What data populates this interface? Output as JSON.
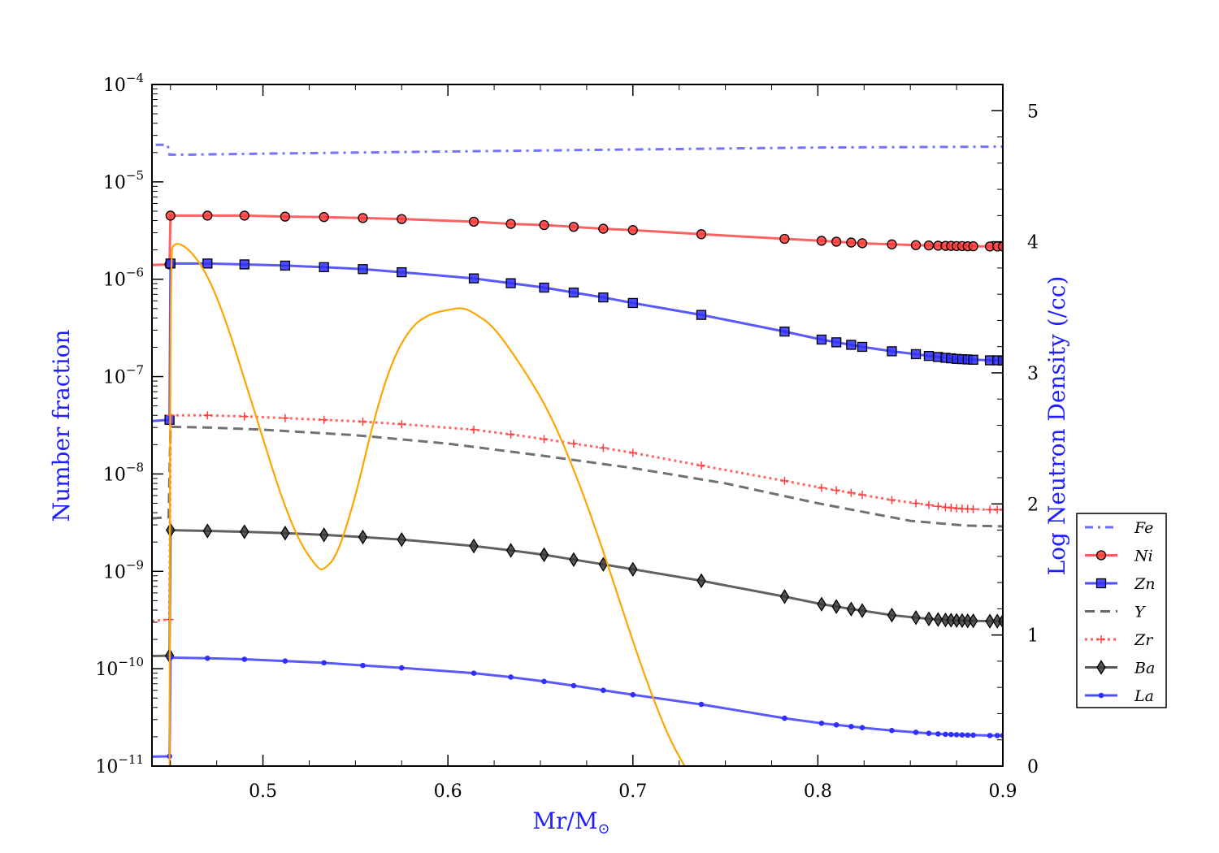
{
  "chart_data": {
    "type": "line",
    "xlabel": "Mr/M",
    "xlabel_sub": "⊙",
    "ylabel": "Number fraction",
    "ylabel_right": "Log Neutron Density (/cc)",
    "x_range": [
      0.44,
      0.9
    ],
    "x_ticks": [
      0.5,
      0.6,
      0.7,
      0.8,
      0.9
    ],
    "x_tick_labels": [
      "0.5",
      "0.6",
      "0.7",
      "0.8",
      "0.9"
    ],
    "y_scale": "log",
    "y_range": [
      1e-11,
      0.0001
    ],
    "y_tick_exps": [
      -4,
      -5,
      -6,
      -7,
      -8,
      -9,
      -10,
      -11
    ],
    "y_tick_labels": [
      "10",
      "10",
      "10",
      "10",
      "10",
      "10",
      "10",
      "10"
    ],
    "y_tick_exp_labels": [
      "−4",
      "−5",
      "−6",
      "−7",
      "−8",
      "−9",
      "−10",
      "−11"
    ],
    "y2_range": [
      0,
      5.2
    ],
    "y2_ticks": [
      0,
      1,
      2,
      3,
      4,
      5
    ],
    "y2_tick_labels": [
      "0",
      "1",
      "2",
      "3",
      "4",
      "5"
    ],
    "grid": false,
    "legend_position": "right-outside",
    "series": [
      {
        "name": "Fe",
        "color": "#5050ff",
        "dash": "10,6,3,6",
        "marker": "none",
        "x": [
          0.442,
          0.4485,
          0.4495,
          0.46,
          0.5,
          0.6,
          0.7,
          0.8,
          0.9
        ],
        "y": [
          2.4e-05,
          2.4e-05,
          1.9e-05,
          1.9e-05,
          1.95e-05,
          2.05e-05,
          2.15e-05,
          2.25e-05,
          2.3e-05
        ]
      },
      {
        "name": "Ni",
        "color": "#ff3b3b",
        "dash": "",
        "marker": "circle",
        "x": [
          0.44,
          0.4495,
          0.45,
          0.47,
          0.49,
          0.512,
          0.533,
          0.554,
          0.575,
          0.614,
          0.634,
          0.652,
          0.668,
          0.684,
          0.7,
          0.737,
          0.782,
          0.802,
          0.81,
          0.818,
          0.824,
          0.84,
          0.853,
          0.86,
          0.865,
          0.869,
          0.872,
          0.875,
          0.878,
          0.881,
          0.884,
          0.893,
          0.897,
          0.9
        ],
        "y": [
          1.4e-06,
          1.42e-06,
          4.5e-06,
          4.5e-06,
          4.5e-06,
          4.4e-06,
          4.35e-06,
          4.25e-06,
          4.15e-06,
          3.9e-06,
          3.7e-06,
          3.6e-06,
          3.45e-06,
          3.3e-06,
          3.2e-06,
          2.9e-06,
          2.6e-06,
          2.48e-06,
          2.43e-06,
          2.38e-06,
          2.34e-06,
          2.28e-06,
          2.24e-06,
          2.22e-06,
          2.21e-06,
          2.2e-06,
          2.2e-06,
          2.19e-06,
          2.19e-06,
          2.18e-06,
          2.18e-06,
          2.17e-06,
          2.17e-06,
          2.17e-06
        ]
      },
      {
        "name": "Zn",
        "color": "#2f2fff",
        "dash": "",
        "marker": "square",
        "x": [
          0.44,
          0.4495,
          0.45,
          0.47,
          0.49,
          0.512,
          0.533,
          0.554,
          0.575,
          0.614,
          0.634,
          0.652,
          0.668,
          0.684,
          0.7,
          0.737,
          0.782,
          0.802,
          0.81,
          0.818,
          0.824,
          0.84,
          0.853,
          0.86,
          0.865,
          0.869,
          0.872,
          0.875,
          0.878,
          0.881,
          0.884,
          0.893,
          0.897,
          0.9
        ],
        "y": [
          3.5e-08,
          3.6e-08,
          1.45e-06,
          1.45e-06,
          1.42e-06,
          1.38e-06,
          1.33e-06,
          1.27e-06,
          1.18e-06,
          1.02e-06,
          9.1e-07,
          8.2e-07,
          7.3e-07,
          6.5e-07,
          5.7e-07,
          4.3e-07,
          2.9e-07,
          2.4e-07,
          2.25e-07,
          2.12e-07,
          2.02e-07,
          1.82e-07,
          1.7e-07,
          1.63e-07,
          1.59e-07,
          1.56e-07,
          1.54e-07,
          1.52e-07,
          1.51e-07,
          1.5e-07,
          1.49e-07,
          1.47e-07,
          1.47e-07,
          1.46e-07
        ]
      },
      {
        "name": "Y",
        "color": "#4d4d4d",
        "dash": "12,7",
        "marker": "none",
        "x": [
          0.44,
          0.449,
          0.45,
          0.47,
          0.5,
          0.55,
          0.6,
          0.65,
          0.7,
          0.75,
          0.8,
          0.85,
          0.88,
          0.9
        ],
        "y": [
          3.5e-09,
          3.6e-09,
          3.05e-08,
          3e-08,
          2.85e-08,
          2.5e-08,
          2.05e-08,
          1.55e-08,
          1.15e-08,
          8e-09,
          5e-09,
          3.3e-09,
          2.95e-09,
          2.9e-09
        ]
      },
      {
        "name": "Zr",
        "color": "#ff4040",
        "dash": "3,4",
        "marker": "plus",
        "x": [
          0.44,
          0.4495,
          0.45,
          0.47,
          0.49,
          0.512,
          0.533,
          0.554,
          0.575,
          0.614,
          0.634,
          0.652,
          0.668,
          0.684,
          0.7,
          0.737,
          0.782,
          0.802,
          0.81,
          0.818,
          0.824,
          0.84,
          0.853,
          0.86,
          0.865,
          0.869,
          0.872,
          0.875,
          0.878,
          0.881,
          0.884,
          0.893,
          0.897,
          0.9
        ],
        "y": [
          3.1e-10,
          3.2e-10,
          4e-08,
          4e-08,
          3.9e-08,
          3.75e-08,
          3.6e-08,
          3.45e-08,
          3.25e-08,
          2.85e-08,
          2.55e-08,
          2.28e-08,
          2.05e-08,
          1.85e-08,
          1.65e-08,
          1.22e-08,
          8.5e-09,
          7.2e-09,
          6.8e-09,
          6.4e-09,
          6.1e-09,
          5.4e-09,
          5e-09,
          4.8e-09,
          4.65e-09,
          4.55e-09,
          4.5e-09,
          4.45e-09,
          4.4e-09,
          4.38e-09,
          4.35e-09,
          4.3e-09,
          4.3e-09,
          4.3e-09
        ]
      },
      {
        "name": "Ba",
        "color": "#3a3a3a",
        "dash": "",
        "marker": "diamond",
        "x": [
          0.44,
          0.4495,
          0.45,
          0.47,
          0.49,
          0.512,
          0.533,
          0.554,
          0.575,
          0.614,
          0.634,
          0.652,
          0.668,
          0.684,
          0.7,
          0.737,
          0.782,
          0.802,
          0.81,
          0.818,
          0.824,
          0.84,
          0.853,
          0.86,
          0.865,
          0.869,
          0.872,
          0.875,
          0.878,
          0.881,
          0.884,
          0.893,
          0.897,
          0.9
        ],
        "y": [
          1.35e-10,
          1.36e-10,
          2.65e-09,
          2.6e-09,
          2.55e-09,
          2.47e-09,
          2.37e-09,
          2.25e-09,
          2.12e-09,
          1.82e-09,
          1.64e-09,
          1.48e-09,
          1.32e-09,
          1.18e-09,
          1.05e-09,
          8e-10,
          5.5e-10,
          4.6e-10,
          4.35e-10,
          4.1e-10,
          3.95e-10,
          3.55e-10,
          3.35e-10,
          3.25e-10,
          3.2e-10,
          3.17e-10,
          3.15e-10,
          3.13e-10,
          3.12e-10,
          3.1e-10,
          3.1e-10,
          3.08e-10,
          3.08e-10,
          3.08e-10
        ]
      },
      {
        "name": "La",
        "color": "#2f2fff",
        "dash": "",
        "marker": "dot",
        "x": [
          0.44,
          0.4495,
          0.45,
          0.47,
          0.49,
          0.512,
          0.533,
          0.554,
          0.575,
          0.614,
          0.634,
          0.652,
          0.668,
          0.684,
          0.7,
          0.737,
          0.782,
          0.802,
          0.81,
          0.818,
          0.824,
          0.84,
          0.853,
          0.86,
          0.865,
          0.869,
          0.872,
          0.875,
          0.878,
          0.881,
          0.884,
          0.893,
          0.897,
          0.9
        ],
        "y": [
          1.25e-11,
          1.26e-11,
          1.3e-10,
          1.28e-10,
          1.25e-10,
          1.2e-10,
          1.15e-10,
          1.08e-10,
          1.02e-10,
          9e-11,
          8.2e-11,
          7.4e-11,
          6.7e-11,
          6e-11,
          5.4e-11,
          4.3e-11,
          3.1e-11,
          2.75e-11,
          2.65e-11,
          2.55e-11,
          2.48e-11,
          2.32e-11,
          2.22e-11,
          2.17e-11,
          2.14e-11,
          2.12e-11,
          2.11e-11,
          2.1e-11,
          2.09e-11,
          2.08e-11,
          2.08e-11,
          2.06e-11,
          2.06e-11,
          2.06e-11
        ]
      }
    ],
    "neutron_density": {
      "color": "#ffa500",
      "axis": "right",
      "x": [
        0.4495,
        0.45,
        0.452,
        0.46,
        0.47,
        0.48,
        0.49,
        0.5,
        0.51,
        0.52,
        0.53,
        0.533,
        0.54,
        0.55,
        0.56,
        0.57,
        0.58,
        0.59,
        0.6,
        0.608,
        0.615,
        0.625,
        0.64,
        0.655,
        0.67,
        0.685,
        0.7,
        0.71,
        0.72,
        0.728
      ],
      "y": [
        0,
        3.9,
        4.0,
        3.95,
        3.75,
        3.4,
        2.95,
        2.5,
        2.05,
        1.7,
        1.5,
        1.5,
        1.6,
        2.05,
        2.65,
        3.1,
        3.35,
        3.45,
        3.48,
        3.5,
        3.45,
        3.35,
        3.05,
        2.7,
        2.2,
        1.6,
        0.95,
        0.55,
        0.2,
        0
      ]
    }
  }
}
